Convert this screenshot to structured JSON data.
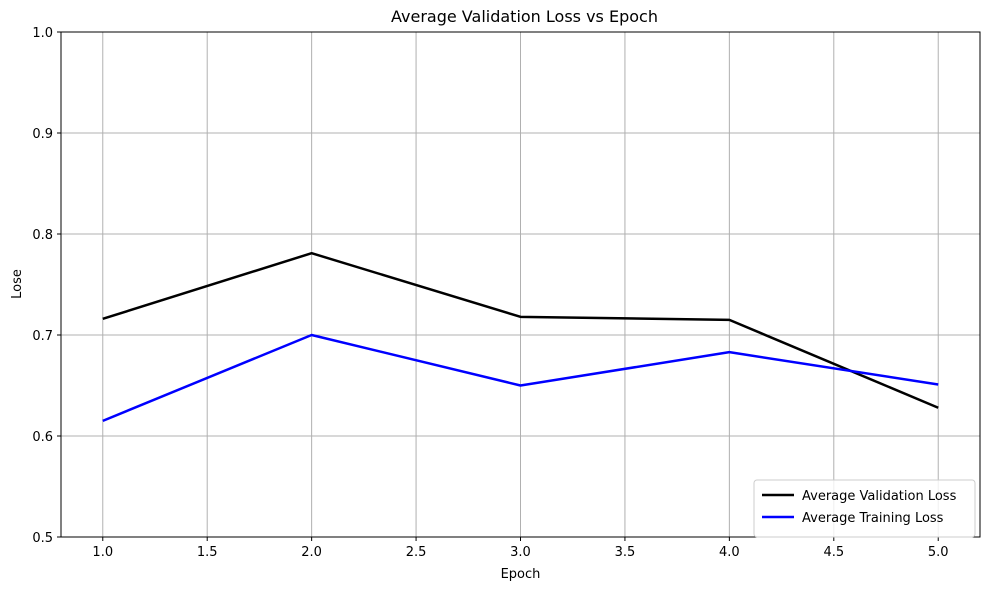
{
  "chart_data": {
    "type": "line",
    "title": "Average Validation Loss vs Epoch",
    "xlabel": "Epoch",
    "ylabel": "Lose",
    "xlim": [
      0.8,
      5.2
    ],
    "ylim": [
      0.5,
      1.0
    ],
    "x_ticks": [
      "1.0",
      "1.5",
      "2.0",
      "2.5",
      "3.0",
      "3.5",
      "4.0",
      "4.5",
      "5.0"
    ],
    "y_ticks": [
      "0.5",
      "0.6",
      "0.7",
      "0.8",
      "0.9",
      "1.0"
    ],
    "grid": true,
    "legend_position": "bottom-right",
    "x": [
      1.0,
      2.0,
      3.0,
      4.0,
      5.0
    ],
    "series": [
      {
        "name": "Average Validation Loss",
        "color": "#000000",
        "values": [
          0.716,
          0.781,
          0.718,
          0.715,
          0.628
        ]
      },
      {
        "name": "Average Training Loss",
        "color": "#0000ff",
        "values": [
          0.615,
          0.7,
          0.65,
          0.683,
          0.651
        ]
      }
    ]
  },
  "colors": {
    "grid": "#b0b0b0",
    "axes": "#000000",
    "background": "#ffffff"
  }
}
